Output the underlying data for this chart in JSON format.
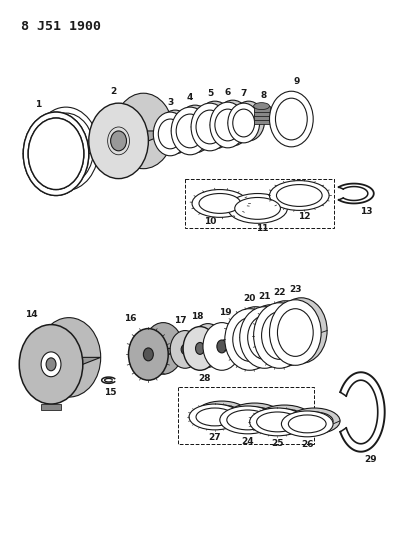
{
  "title": "8 J51 1900",
  "background_color": "#ffffff",
  "line_color": "#1a1a1a",
  "lw": 0.8
}
